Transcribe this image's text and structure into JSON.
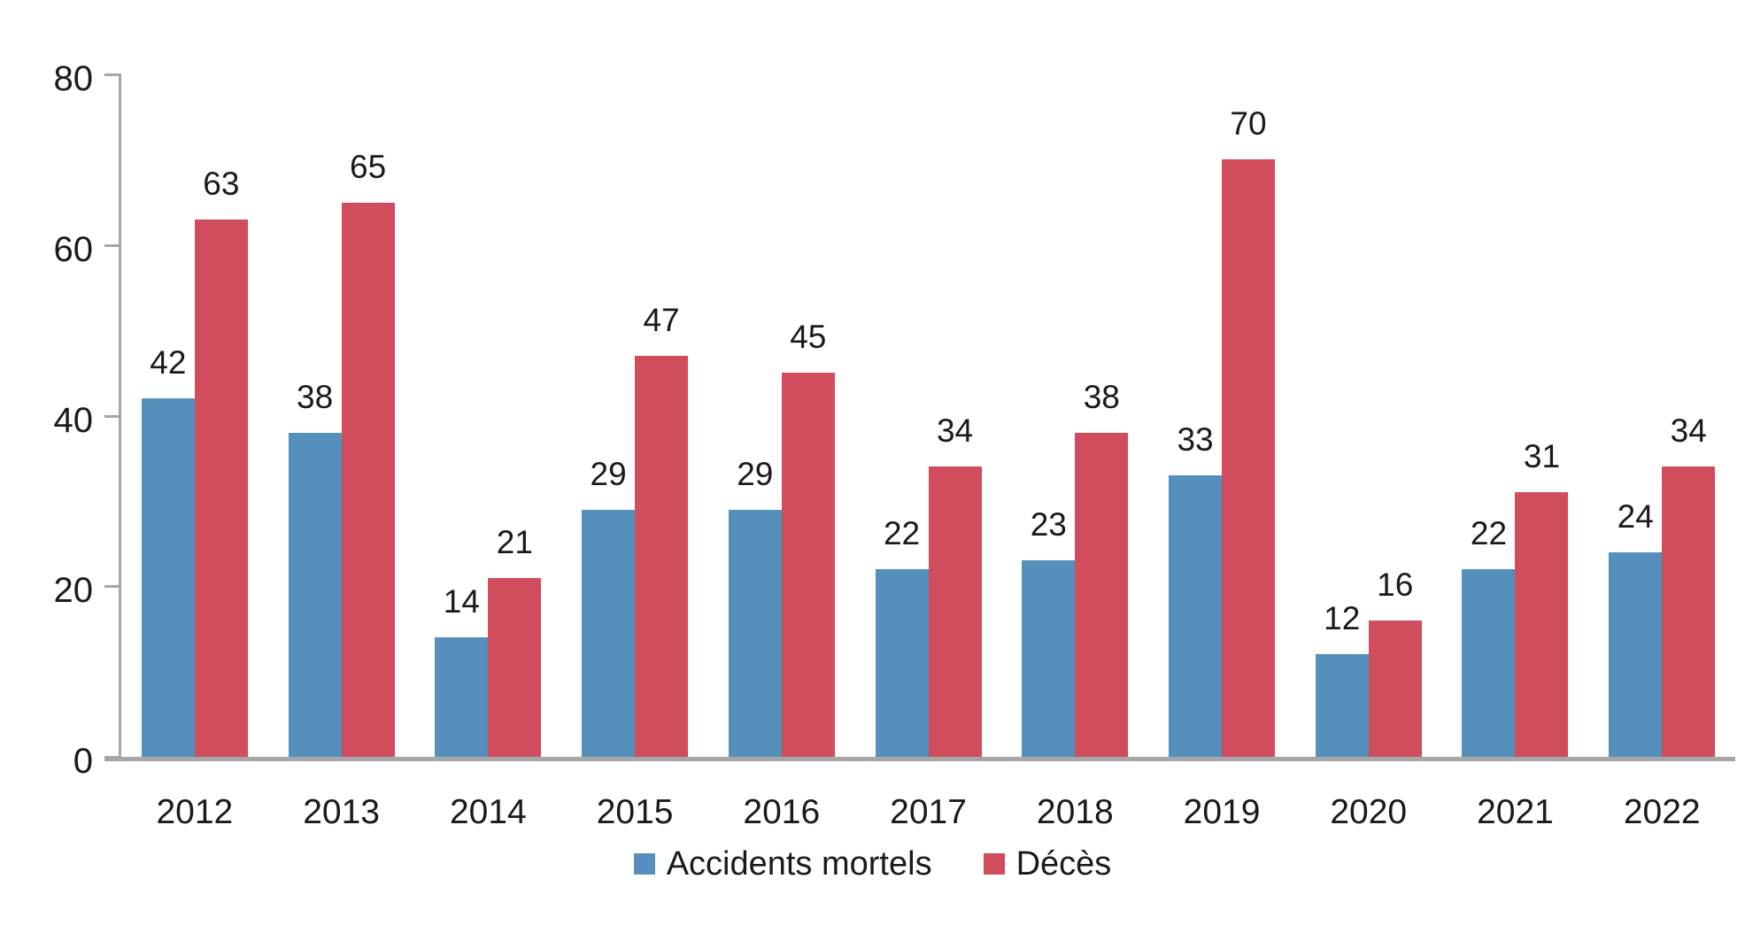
{
  "chart_data": {
    "type": "bar",
    "title": "",
    "xlabel": "",
    "ylabel": "",
    "categories": [
      "2012",
      "2013",
      "2014",
      "2015",
      "2016",
      "2017",
      "2018",
      "2019",
      "2020",
      "2021",
      "2022"
    ],
    "series": [
      {
        "name": "Accidents mortels",
        "color": "#5490BB",
        "values": [
          42,
          38,
          14,
          29,
          29,
          22,
          23,
          33,
          12,
          22,
          24
        ]
      },
      {
        "name": "Décès",
        "color": "#D04D5E",
        "values": [
          63,
          65,
          21,
          47,
          45,
          34,
          38,
          70,
          16,
          31,
          34
        ]
      }
    ],
    "ylim": [
      0,
      80
    ],
    "yticks": [
      0,
      20,
      40,
      60,
      80
    ],
    "grid": false,
    "data_labels": true,
    "legend_position": "bottom",
    "axis_color": "#A6A6A6",
    "text_color": "#1A1A1A",
    "background_color": "#FFFFFF"
  },
  "legend": {
    "items": [
      {
        "label": "Accidents mortels",
        "color": "#5490BB"
      },
      {
        "label": "Décès",
        "color": "#D04D5E"
      }
    ]
  }
}
